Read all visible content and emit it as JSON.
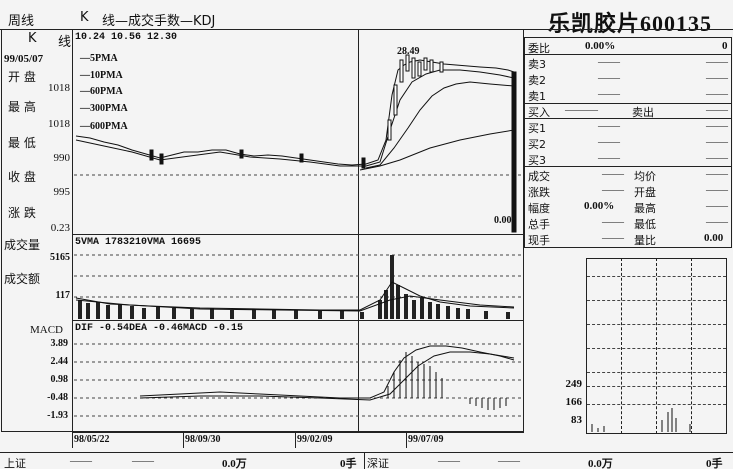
{
  "header": {
    "period": "周线",
    "chart_type": "K",
    "desc": "线—成交手数—KDJ",
    "stock_title": "乐凯胶片600135"
  },
  "left_info": {
    "k_label": "K",
    "line_label": "线",
    "date": "99/05/07",
    "open_label": "开    盘",
    "open_val": "1018",
    "high_label": "最    高",
    "high_val": "1018",
    "low_label": "最    低",
    "low_val": "990",
    "close_label": "收    盘",
    "close_val": "995",
    "change_label": "涨    跌",
    "change_val": "0.23",
    "vol_label": "成交量",
    "vol_val": "5165",
    "amt_label": "成交额",
    "amt_val": "117",
    "macd_label": "MACD"
  },
  "price_panel": {
    "header": "10.24  10.56  12.30",
    "ma_legend": [
      "5PMA",
      "10PMA",
      "60PMA",
      "300PMA",
      "600PMA"
    ],
    "peak_label": "28.49",
    "axis_val": "0.00"
  },
  "vol_panel": {
    "header": "5VMA    1783210VMA   16695"
  },
  "macd_panel": {
    "header": "DIF  -0.54DEA   -0.46MACD   -0.15",
    "ticks": [
      "3.89",
      "2.44",
      "0.98",
      "-0.48",
      "-1.93"
    ]
  },
  "date_axis": [
    "98/05/22",
    "98/09/30",
    "99/02/09",
    "99/07/09"
  ],
  "order_book": {
    "weibi_label": "委比",
    "weibi_val": "0.00%",
    "weibi_right": "0",
    "sells": [
      "卖3",
      "卖2",
      "卖1"
    ],
    "buy_in": "买入",
    "sell_out": "卖出",
    "buys": [
      "买1",
      "买2",
      "买3"
    ],
    "stats": [
      {
        "l": "成交",
        "m": "均价"
      },
      {
        "l": "涨跌",
        "m": "开盘"
      },
      {
        "l": "幅度",
        "v": "0.00%",
        "m": "最高"
      },
      {
        "l": "总手",
        "m": "最低"
      },
      {
        "l": "现手",
        "m": "量比",
        "r": "0.00"
      }
    ]
  },
  "mini_chart": {
    "ticks": [
      "249",
      "166",
      "83"
    ]
  },
  "footer": {
    "sh_label": "上证",
    "sh_amt": "0.0万",
    "sh_shou": "0手",
    "sz_label": "深证",
    "sz_amt": "0.0万",
    "sz_shou": "0手"
  }
}
